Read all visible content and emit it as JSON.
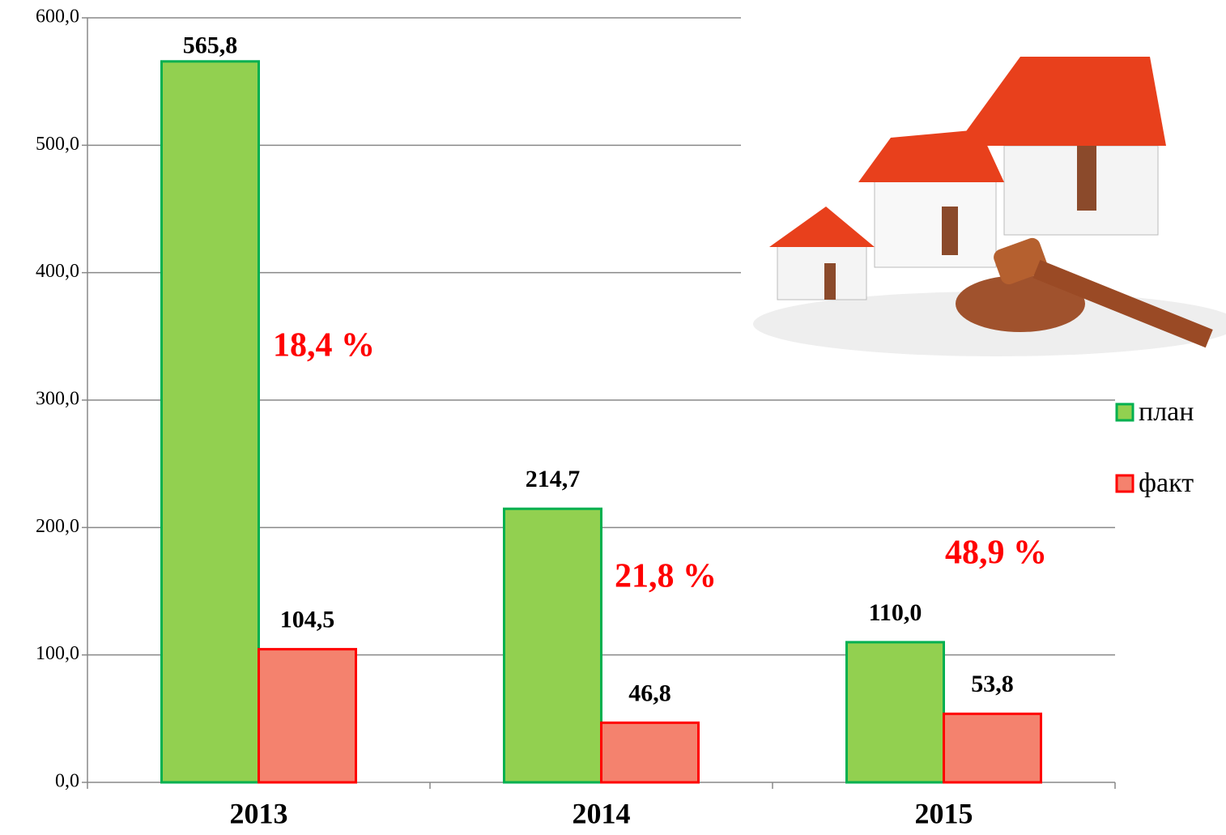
{
  "chart_data": {
    "type": "bar",
    "categories": [
      "2013",
      "2014",
      "2015"
    ],
    "series": [
      {
        "name": "план",
        "color": "#92d050",
        "stroke": "#00b050",
        "values": [
          565.8,
          214.7,
          110.0
        ],
        "value_labels": [
          "565,8",
          "214,7",
          "110,0"
        ]
      },
      {
        "name": "факт",
        "color": "#f4826e",
        "stroke": "#ff0000",
        "values": [
          104.5,
          46.8,
          53.8
        ],
        "value_labels": [
          "104,5",
          "46,8",
          "53,8"
        ]
      }
    ],
    "ylim": [
      0,
      600
    ],
    "yticks": [
      {
        "value": 0,
        "label": "0,0"
      },
      {
        "value": 100,
        "label": "100,0"
      },
      {
        "value": 200,
        "label": "200,0"
      },
      {
        "value": 300,
        "label": "300,0"
      },
      {
        "value": 400,
        "label": "400,0"
      },
      {
        "value": 500,
        "label": "500,0"
      },
      {
        "value": 600,
        "label": "600,0"
      }
    ],
    "grid": true,
    "legend": "right",
    "annotations": [
      {
        "text": "18,4 %",
        "color": "#ff0000"
      },
      {
        "text": "21,8 %",
        "color": "#ff0000"
      },
      {
        "text": "48,9 %",
        "color": "#ff0000"
      }
    ]
  }
}
